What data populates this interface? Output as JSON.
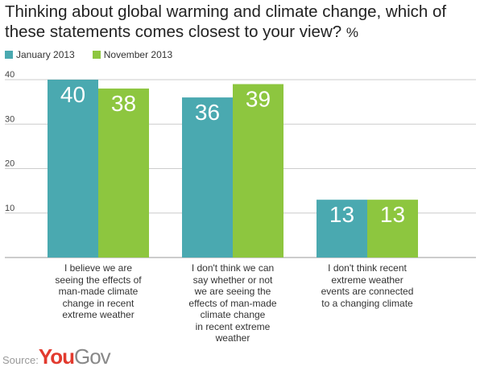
{
  "title": "Thinking about global warming and climate change, which of these statements comes closest to your view?",
  "title_unit": "%",
  "legend": [
    {
      "label": "January 2013",
      "color": "#4aa9b0"
    },
    {
      "label": "November 2013",
      "color": "#8dc63f"
    }
  ],
  "source": {
    "label": "Source:",
    "logo_part1": "You",
    "logo_part2": "Gov"
  },
  "chart_data": {
    "type": "bar",
    "categories": [
      "I believe we are seeing the effects of man-made climate change in recent extreme weather",
      "I don't think we can say whether or not we are seeing the effects of man-made climate change in recent extreme weather",
      "I don't think recent extreme weather events are connected to a changing climate"
    ],
    "category_lines": [
      [
        "I believe we are",
        "seeing the effects of",
        "man-made climate",
        "change in recent",
        "extreme weather"
      ],
      [
        "I don't think we can",
        "say whether or not",
        "we are seeing the",
        "effects of man-made",
        "climate change",
        "in recent extreme",
        "weather"
      ],
      [
        "I don't think recent",
        "extreme weather",
        "events are connected",
        "to a changing climate"
      ]
    ],
    "series": [
      {
        "name": "January 2013",
        "values": [
          40,
          36,
          13
        ],
        "color": "#4aa9b0"
      },
      {
        "name": "November 2013",
        "values": [
          38,
          39,
          13
        ],
        "color": "#8dc63f"
      }
    ],
    "ylim": [
      0,
      40
    ],
    "yticks": [
      10,
      20,
      30,
      40
    ],
    "grid": true
  }
}
